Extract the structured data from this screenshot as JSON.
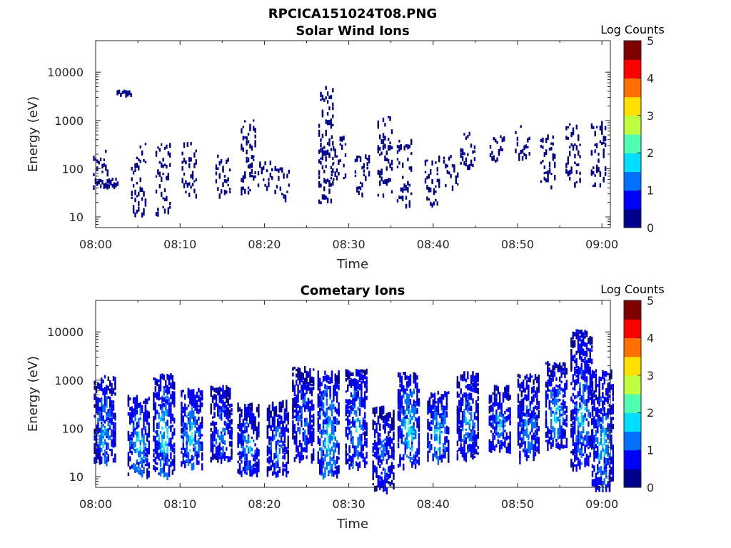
{
  "figure": {
    "title": "RPCICA151024T08.PNG"
  },
  "colormap": [
    "#00008f",
    "#0000ff",
    "#0070ff",
    "#00dfff",
    "#50ffaf",
    "#bfff40",
    "#ffdf00",
    "#ff7000",
    "#ff0000",
    "#800000"
  ],
  "chart_data": [
    {
      "type": "heatmap",
      "title": "Solar Wind Ions",
      "xlabel": "Time",
      "ylabel": "Energy (eV)",
      "yscale": "log",
      "xlim": [
        "08:00",
        "09:01"
      ],
      "ylim": [
        6,
        45000
      ],
      "x_ticks": [
        "08:00",
        "08:10",
        "08:20",
        "08:30",
        "08:40",
        "08:50",
        "09:00"
      ],
      "y_ticks": [
        "10",
        "100",
        "1000",
        "10000"
      ],
      "colorbar": {
        "label": "Log Counts",
        "range": [
          0,
          5
        ],
        "ticks": [
          "0",
          "1",
          "2",
          "3",
          "4",
          "5"
        ]
      },
      "grid": false,
      "clusters": [
        {
          "time_min": 0.5,
          "e_low": 45,
          "e_high": 250,
          "log_counts": 0.2
        },
        {
          "time_min": 1.7,
          "e_low": 45,
          "e_high": 65,
          "log_counts": 0.2
        },
        {
          "time_min": 3.3,
          "e_low": 4500,
          "e_high": 4500,
          "log_counts": 0.2
        },
        {
          "time_min": 5.0,
          "e_low": 12,
          "e_high": 350,
          "log_counts": 0.3
        },
        {
          "time_min": 7.9,
          "e_low": 12,
          "e_high": 350,
          "log_counts": 0.3
        },
        {
          "time_min": 11.0,
          "e_low": 30,
          "e_high": 380,
          "log_counts": 0.3
        },
        {
          "time_min": 15.0,
          "e_low": 30,
          "e_high": 200,
          "log_counts": 0.2
        },
        {
          "time_min": 18.0,
          "e_low": 28,
          "e_high": 1050,
          "log_counts": 0.2
        },
        {
          "time_min": 20.0,
          "e_low": 40,
          "e_high": 150,
          "log_counts": 0.2
        },
        {
          "time_min": 22.0,
          "e_low": 25,
          "e_high": 120,
          "log_counts": 0.2
        },
        {
          "time_min": 27.2,
          "e_low": 18,
          "e_high": 5300,
          "log_counts": 0.3
        },
        {
          "time_min": 28.7,
          "e_low": 60,
          "e_high": 500,
          "log_counts": 0.2
        },
        {
          "time_min": 31.5,
          "e_low": 30,
          "e_high": 250,
          "log_counts": 0.2
        },
        {
          "time_min": 34.2,
          "e_low": 30,
          "e_high": 1250,
          "log_counts": 0.2
        },
        {
          "time_min": 36.5,
          "e_low": 18,
          "e_high": 480,
          "log_counts": 0.3
        },
        {
          "time_min": 39.8,
          "e_low": 18,
          "e_high": 200,
          "log_counts": 0.3
        },
        {
          "time_min": 42.0,
          "e_low": 40,
          "e_high": 200,
          "log_counts": 0.2
        },
        {
          "time_min": 44.0,
          "e_low": 100,
          "e_high": 600,
          "log_counts": 0.2
        },
        {
          "time_min": 47.5,
          "e_low": 150,
          "e_high": 520,
          "log_counts": 0.2
        },
        {
          "time_min": 50.5,
          "e_low": 150,
          "e_high": 800,
          "log_counts": 0.2
        },
        {
          "time_min": 53.5,
          "e_low": 45,
          "e_high": 550,
          "log_counts": 0.2
        },
        {
          "time_min": 56.5,
          "e_low": 45,
          "e_high": 900,
          "log_counts": 0.2
        },
        {
          "time_min": 59.5,
          "e_low": 45,
          "e_high": 1000,
          "log_counts": 0.3
        }
      ]
    },
    {
      "type": "heatmap",
      "title": "Cometary Ions",
      "xlabel": "Time",
      "ylabel": "Energy (eV)",
      "yscale": "log",
      "xlim": [
        "08:00",
        "09:01"
      ],
      "ylim": [
        6,
        45000
      ],
      "x_ticks": [
        "08:00",
        "08:10",
        "08:20",
        "08:30",
        "08:40",
        "08:50",
        "09:00"
      ],
      "y_ticks": [
        "10",
        "100",
        "1000",
        "10000"
      ],
      "colorbar": {
        "label": "Log Counts",
        "range": [
          0,
          5
        ],
        "ticks": [
          "0",
          "1",
          "2",
          "3",
          "4",
          "5"
        ]
      },
      "grid": false,
      "clusters": [
        {
          "time_min": 1.0,
          "e_low": 22,
          "e_high": 1300,
          "log_counts": 1.5
        },
        {
          "time_min": 5.0,
          "e_low": 12,
          "e_high": 500,
          "log_counts": 1.6
        },
        {
          "time_min": 8.0,
          "e_low": 12,
          "e_high": 1400,
          "log_counts": 1.7
        },
        {
          "time_min": 11.3,
          "e_low": 18,
          "e_high": 700,
          "log_counts": 1.7
        },
        {
          "time_min": 14.8,
          "e_low": 25,
          "e_high": 800,
          "log_counts": 1.3
        },
        {
          "time_min": 18.0,
          "e_low": 12,
          "e_high": 350,
          "log_counts": 1.4
        },
        {
          "time_min": 21.5,
          "e_low": 12,
          "e_high": 400,
          "log_counts": 1.3
        },
        {
          "time_min": 24.5,
          "e_low": 25,
          "e_high": 2000,
          "log_counts": 1.3
        },
        {
          "time_min": 27.5,
          "e_low": 12,
          "e_high": 1600,
          "log_counts": 1.8
        },
        {
          "time_min": 30.8,
          "e_low": 18,
          "e_high": 1800,
          "log_counts": 1.5
        },
        {
          "time_min": 34.0,
          "e_low": 6,
          "e_high": 300,
          "log_counts": 1.2
        },
        {
          "time_min": 37.0,
          "e_low": 18,
          "e_high": 1500,
          "log_counts": 1.8
        },
        {
          "time_min": 40.5,
          "e_low": 25,
          "e_high": 600,
          "log_counts": 1.7
        },
        {
          "time_min": 44.0,
          "e_low": 25,
          "e_high": 1600,
          "log_counts": 1.4
        },
        {
          "time_min": 47.8,
          "e_low": 40,
          "e_high": 800,
          "log_counts": 1.5
        },
        {
          "time_min": 51.2,
          "e_low": 25,
          "e_high": 1400,
          "log_counts": 1.4
        },
        {
          "time_min": 54.5,
          "e_low": 45,
          "e_high": 2500,
          "log_counts": 1.5
        },
        {
          "time_min": 57.5,
          "e_low": 18,
          "e_high": 11500,
          "log_counts": 1.5
        },
        {
          "time_min": 60.0,
          "e_low": 6,
          "e_high": 1800,
          "log_counts": 1.6
        }
      ]
    }
  ]
}
